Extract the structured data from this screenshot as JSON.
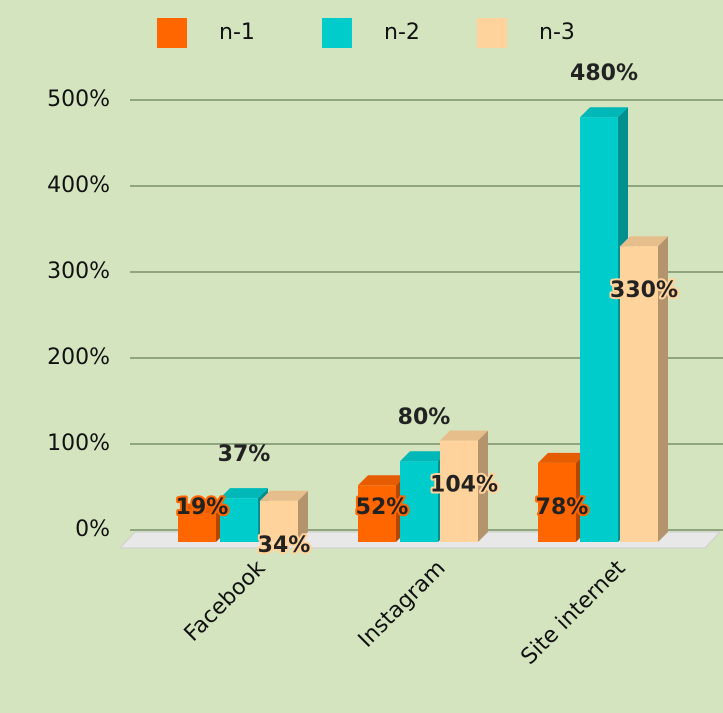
{
  "chart_data": {
    "type": "bar3d",
    "categories": [
      "Facebook",
      "Instagram",
      "Site internet"
    ],
    "series": [
      {
        "name": "n-1",
        "color": "#ff6600",
        "values": [
          19,
          52,
          78
        ],
        "value_labels": [
          "19%",
          "52%",
          "78%"
        ]
      },
      {
        "name": "n-2",
        "color": "#00cccc",
        "values": [
          37,
          80,
          480
        ],
        "value_labels": [
          "37%",
          "80%",
          "480%"
        ]
      },
      {
        "name": "n-3",
        "color": "#ffd39b",
        "values": [
          34,
          104,
          330
        ],
        "value_labels": [
          "34%",
          "104%",
          "330%"
        ]
      }
    ],
    "ylim": [
      0,
      500
    ],
    "yticks": [
      {
        "value": 0,
        "label": "0%"
      },
      {
        "value": 100,
        "label": "100%"
      },
      {
        "value": 200,
        "label": "200%"
      },
      {
        "value": 300,
        "label": "300%"
      },
      {
        "value": 400,
        "label": "400%"
      },
      {
        "value": 500,
        "label": "500%"
      }
    ],
    "grid": true,
    "legend": "top"
  }
}
